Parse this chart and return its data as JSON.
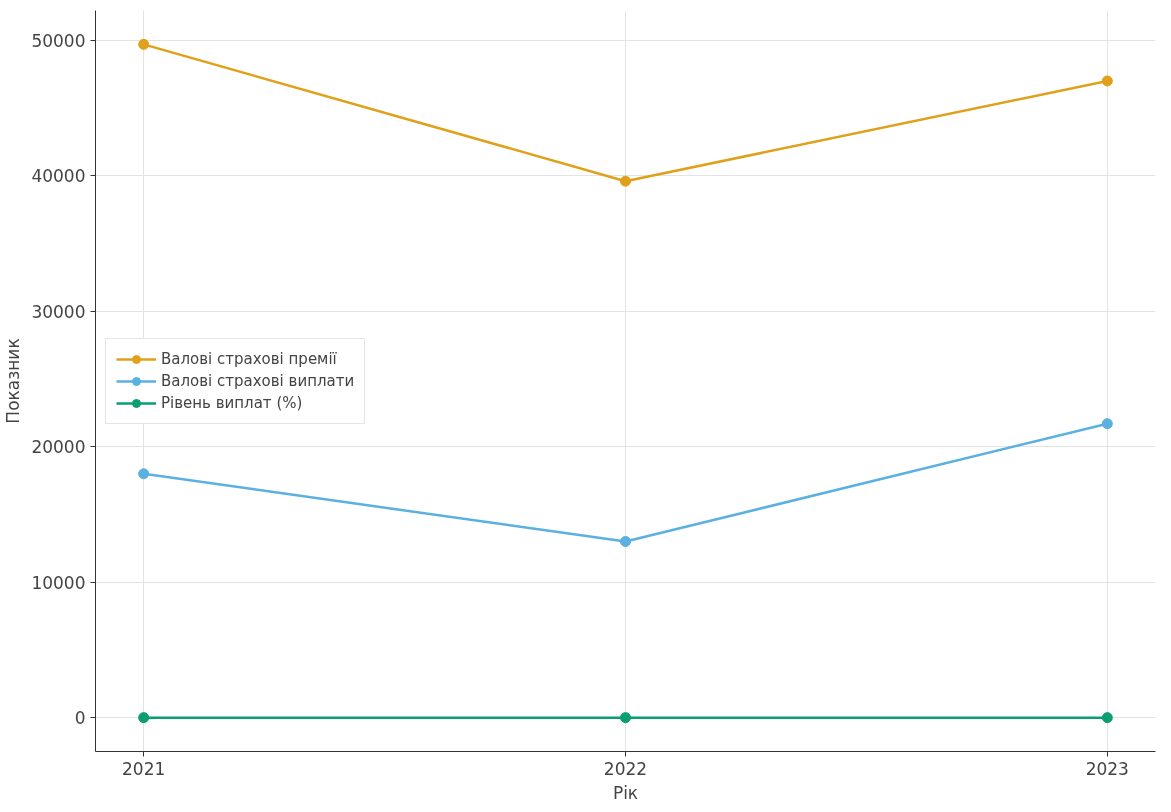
{
  "chart_data": {
    "type": "line",
    "xlabel": "Рік",
    "ylabel": "Показник",
    "x": [
      2021,
      2022,
      2023
    ],
    "series": [
      {
        "name": "Валові страхові премії",
        "color": "#e0a01a",
        "values": [
          49700,
          39600,
          47000
        ]
      },
      {
        "name": "Валові страхові виплати",
        "color": "#5ab0e0",
        "values": [
          18000,
          13000,
          21700
        ]
      },
      {
        "name": "Рівень виплат (%)",
        "color": "#0a9e73",
        "values": [
          0,
          0,
          0
        ]
      }
    ],
    "xlim": [
      2020.9,
      2023.1
    ],
    "xticks": [
      2021,
      2022,
      2023
    ],
    "ylim": [
      -2500,
      52200
    ],
    "yticks": [
      0,
      10000,
      20000,
      30000,
      40000,
      50000
    ],
    "grid": true,
    "legend": "left",
    "marker": "circle",
    "line_style": "solid"
  }
}
